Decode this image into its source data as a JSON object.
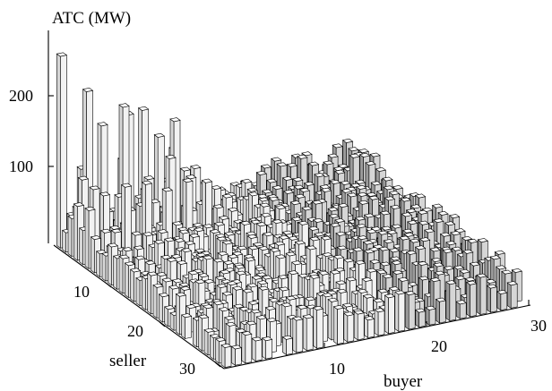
{
  "chart_data": {
    "type": "bar",
    "subtype": "3d-bar-matrix",
    "title": "",
    "zlabel": "ATC (MW)",
    "xlabel": "buyer",
    "ylabel": "seller",
    "x_ticks": [
      "10",
      "20",
      "30"
    ],
    "y_ticks": [
      "10",
      "20",
      "30"
    ],
    "z_ticks": [
      "100",
      "200"
    ],
    "zlim": [
      0,
      280
    ],
    "buyers": 30,
    "sellers": 30,
    "peak_bars": [
      {
        "seller": 1,
        "buyer": 1,
        "value": 270
      },
      {
        "seller": 2,
        "buyer": 3,
        "value": 220
      },
      {
        "seller": 3,
        "buyer": 6,
        "value": 195
      },
      {
        "seller": 1,
        "buyer": 5,
        "value": 160
      },
      {
        "seller": 2,
        "buyer": 7,
        "value": 175
      },
      {
        "seller": 1,
        "buyer": 9,
        "value": 170
      },
      {
        "seller": 3,
        "buyer": 11,
        "value": 160
      },
      {
        "seller": 2,
        "buyer": 10,
        "value": 135
      }
    ],
    "typical_range": [
      20,
      55
    ],
    "grid": false,
    "colors": {
      "bar_light": "#f2f2f2",
      "bar_mid": "#d6d6d6",
      "bar_dark": "#9a9a9a",
      "outline": "#000000"
    }
  }
}
